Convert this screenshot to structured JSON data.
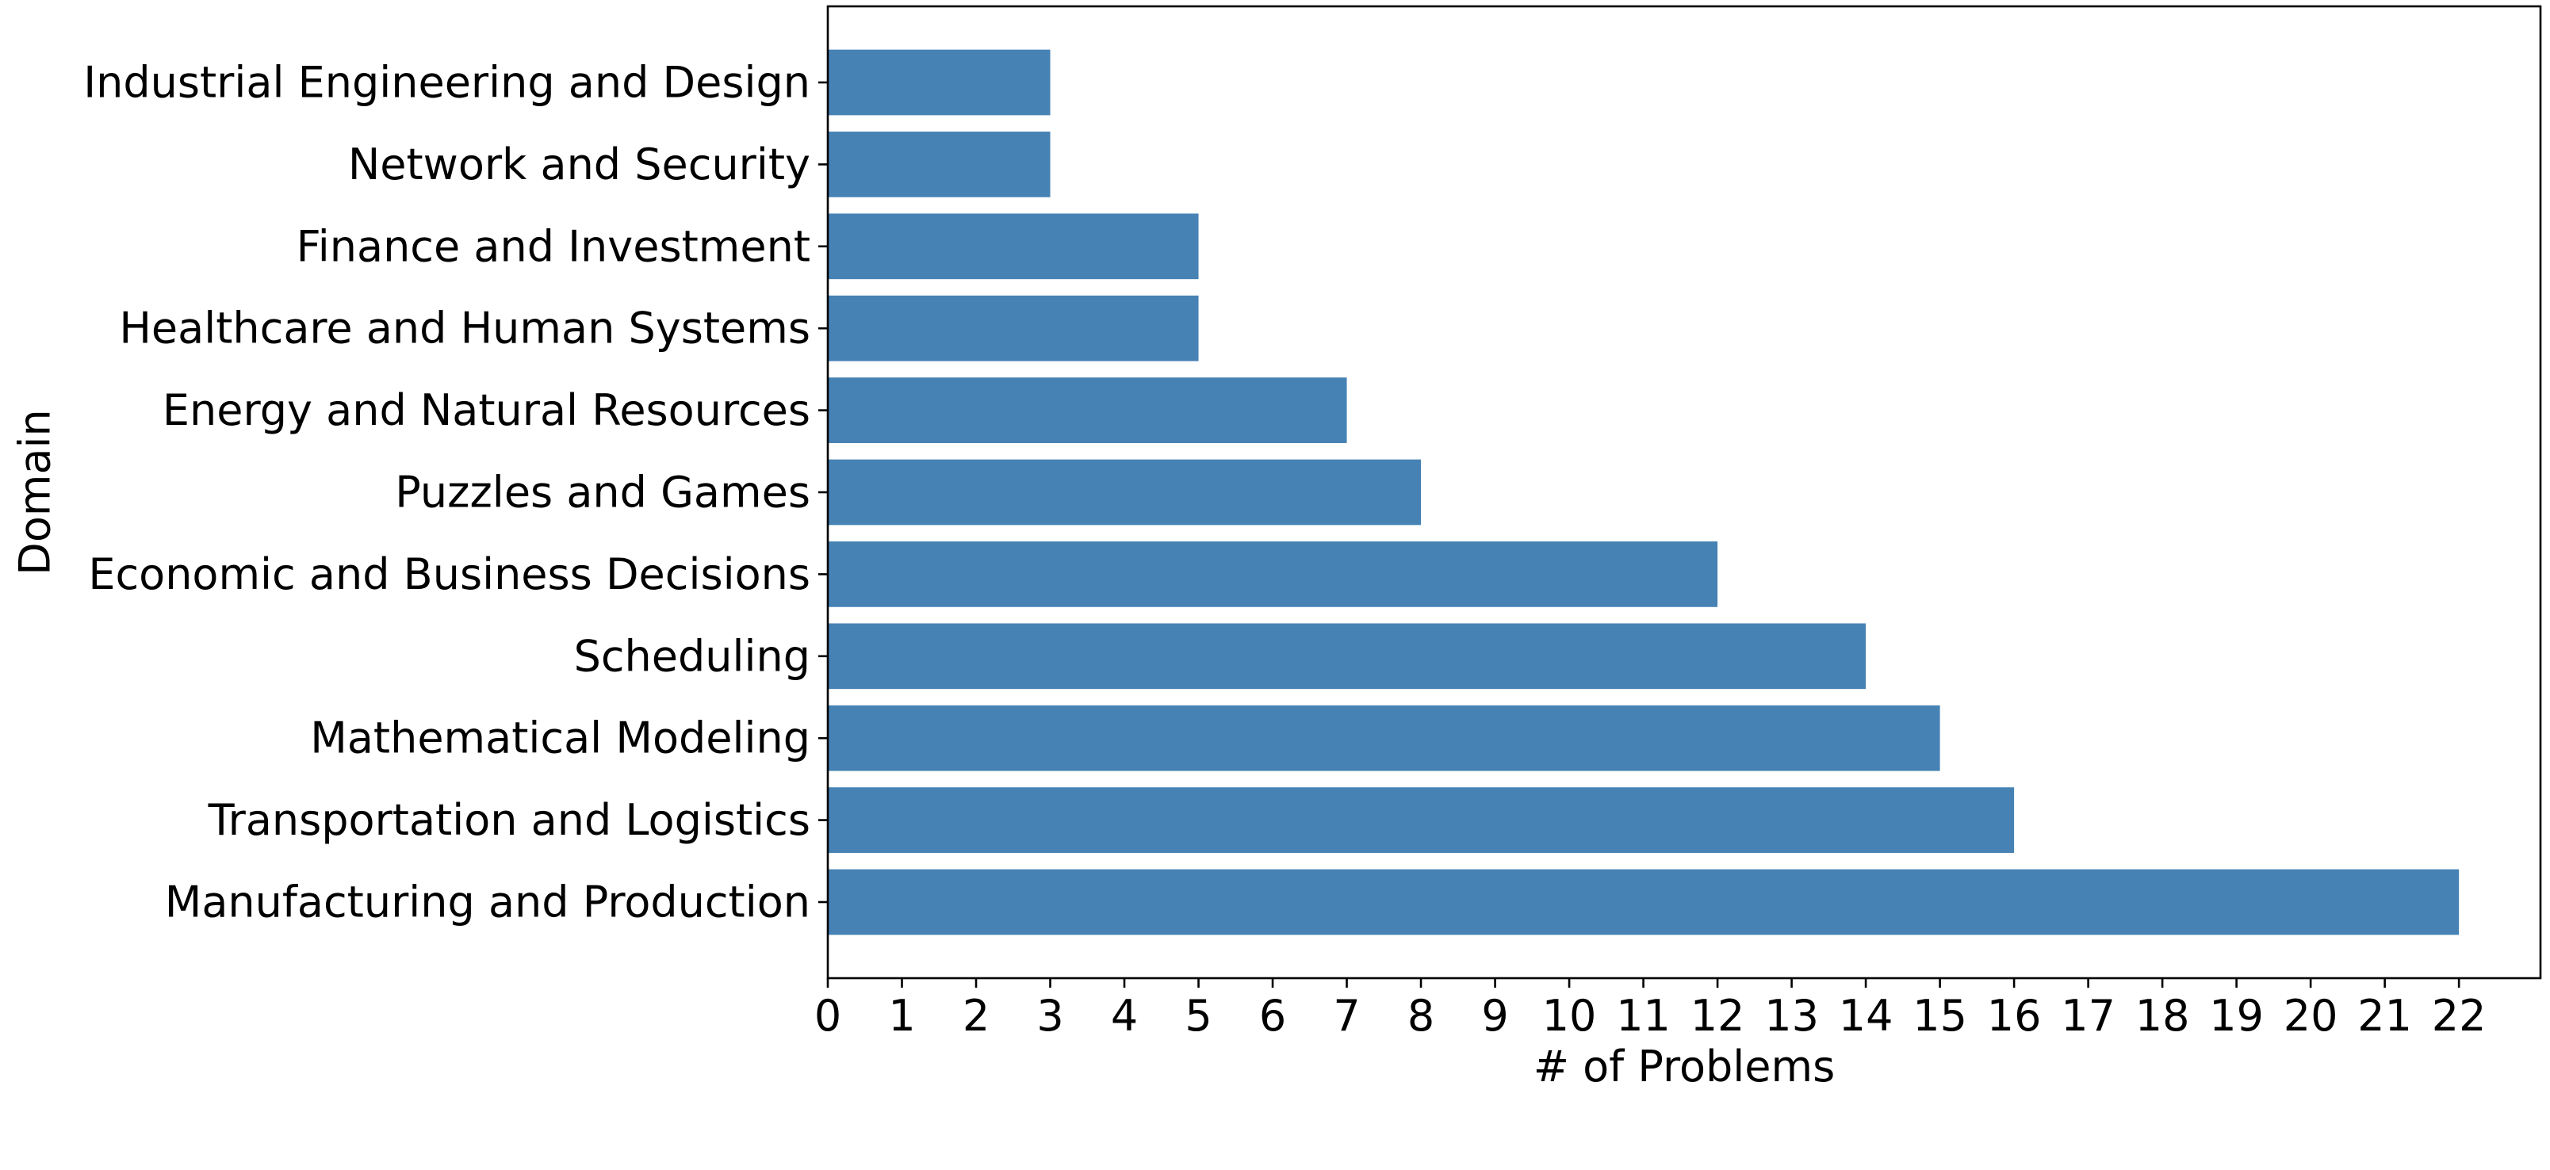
{
  "chart_data": {
    "type": "bar",
    "orientation": "horizontal",
    "categories": [
      "Manufacturing and Production",
      "Transportation and Logistics",
      "Mathematical Modeling",
      "Scheduling",
      "Economic and Business Decisions",
      "Puzzles and Games",
      "Energy and Natural Resources",
      "Healthcare and Human Systems",
      "Finance and Investment",
      "Network and Security",
      "Industrial Engineering and Design"
    ],
    "values": [
      22,
      16,
      15,
      14,
      12,
      8,
      7,
      5,
      5,
      3,
      3
    ],
    "xlabel": "# of Problems",
    "ylabel": "Domain",
    "xlim": [
      0,
      23.1
    ],
    "xticks": [
      0,
      1,
      2,
      3,
      4,
      5,
      6,
      7,
      8,
      9,
      10,
      11,
      12,
      13,
      14,
      15,
      16,
      17,
      18,
      19,
      20,
      21,
      22
    ],
    "bar_color": "#4682b4",
    "grid": false,
    "legend": "none"
  }
}
